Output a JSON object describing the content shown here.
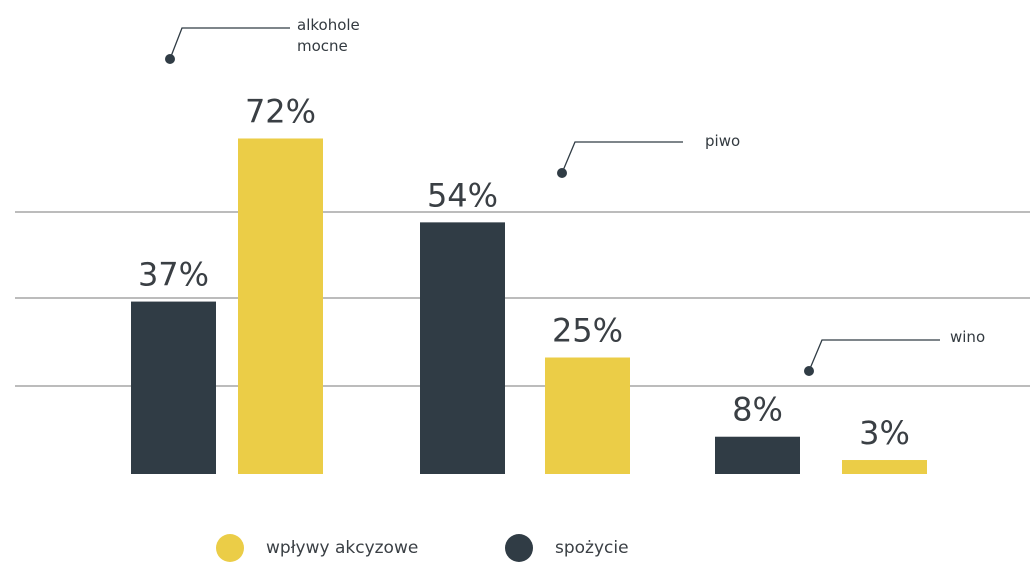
{
  "chart_data": {
    "type": "bar",
    "categories": [
      "alkohole mocne",
      "piwo",
      "wino"
    ],
    "category_labels": [
      [
        "alkohole",
        "mocne"
      ],
      [
        "piwo"
      ],
      [
        "wino"
      ]
    ],
    "series": [
      {
        "name": "spożycie",
        "values": [
          37,
          54,
          8
        ],
        "color": "#303c45"
      },
      {
        "name": "wpływy akcyzowe",
        "values": [
          72,
          25,
          3
        ],
        "color": "#ebcd47"
      }
    ],
    "value_labels": [
      [
        "37%",
        "72%"
      ],
      [
        "54%",
        "25%"
      ],
      [
        "8%",
        "3%"
      ]
    ],
    "unit": "%",
    "ylim": [
      0,
      100
    ],
    "grid": true
  },
  "legend": [
    {
      "label": "wpływy akcyzowe",
      "color": "#ebcd47"
    },
    {
      "label": "spożycie",
      "color": "#303c45"
    }
  ],
  "colors": {
    "dark": "#303c45",
    "yellow": "#ebcd47",
    "grid": "#7a7a7a",
    "text": "#3a3f44"
  }
}
